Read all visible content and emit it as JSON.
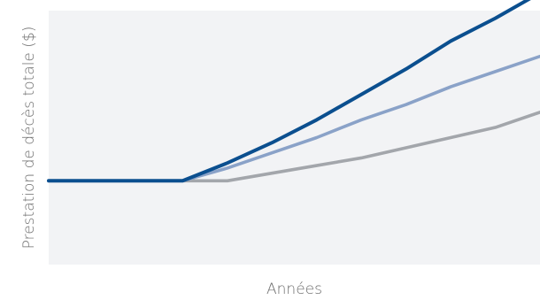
{
  "chart_data": {
    "type": "line",
    "title": "",
    "xlabel": "Années",
    "ylabel": "Prestation de décès totale ($)",
    "x": [
      0,
      1,
      2,
      3,
      4,
      5,
      6,
      7,
      8,
      9,
      10,
      11
    ],
    "ylim": [
      0,
      100
    ],
    "xlim": [
      0,
      11
    ],
    "grid": false,
    "legend": "none",
    "background": "#f2f3f5",
    "series": [
      {
        "color": "#0b4f8f",
        "values": [
          33,
          33,
          33,
          33,
          40,
          48,
          57,
          67,
          77,
          88,
          97,
          107
        ]
      },
      {
        "color": "#8aa2c8",
        "values": [
          33,
          33,
          33,
          33,
          38,
          44,
          50,
          57,
          63,
          70,
          76,
          82
        ]
      },
      {
        "color": "#a3a6ab",
        "values": [
          33,
          33,
          33,
          33,
          33,
          36,
          39,
          42,
          46,
          50,
          54,
          60
        ]
      }
    ]
  }
}
